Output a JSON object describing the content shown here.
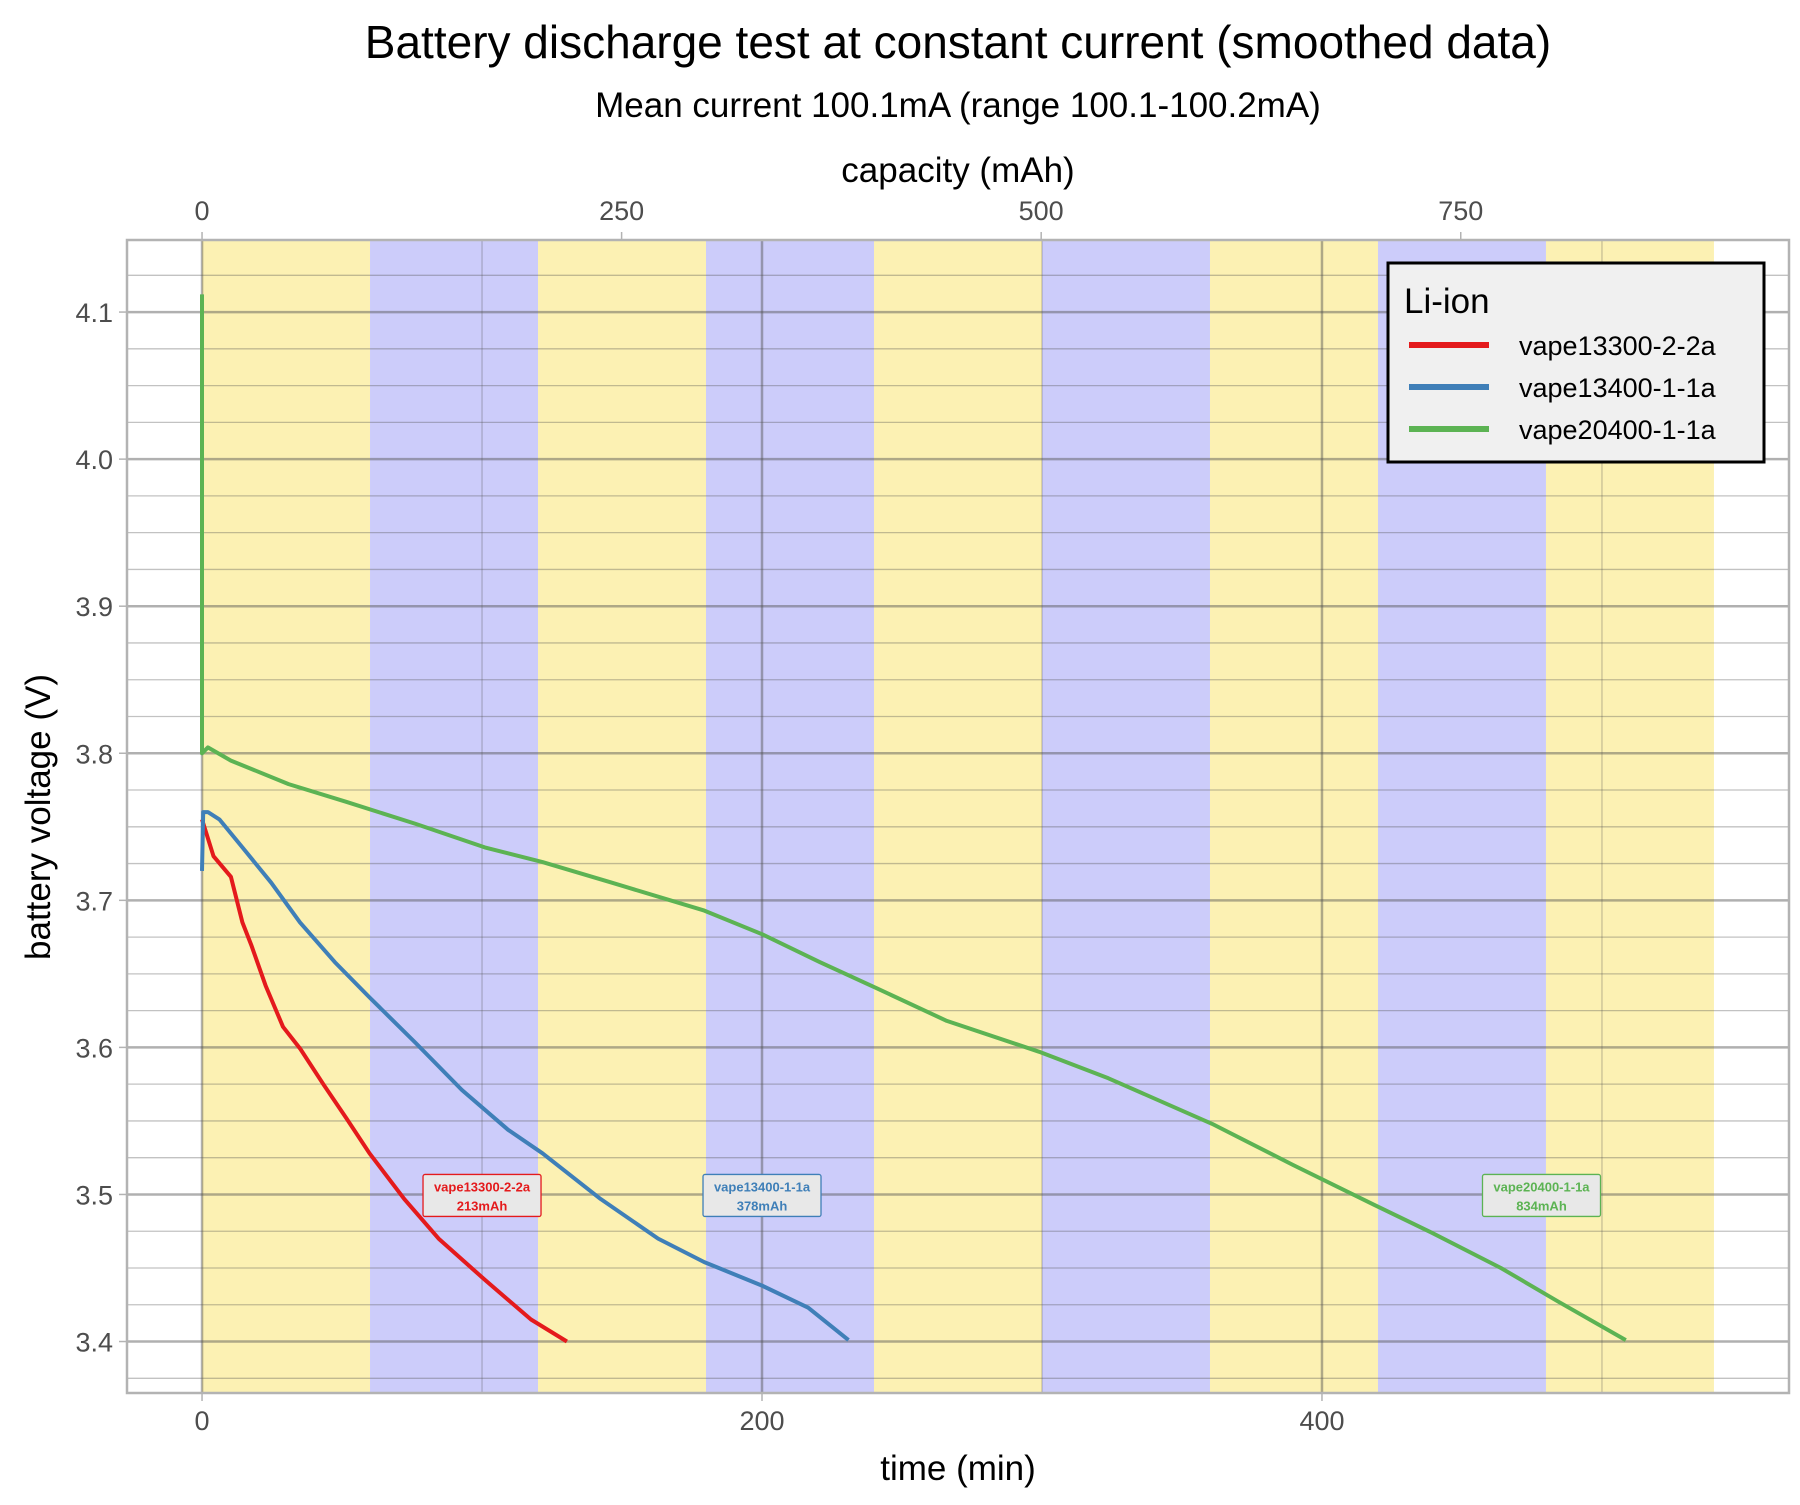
{
  "chart_data": {
    "type": "line",
    "title": "Battery discharge test at constant current (smoothed data)",
    "subtitle": "Mean current 100.1mA (range 100.1-100.2mA)",
    "xlabel": "time (min)",
    "ylabel": "battery voltage (V)",
    "x2label": "capacity (mAh)",
    "xlim": [
      -26.8,
      566.8
    ],
    "ylim": [
      3.365,
      4.149
    ],
    "x_ticks": [
      0,
      200,
      400
    ],
    "x2_ticks": [
      0,
      250,
      500,
      750
    ],
    "x2_per_x": 1.6683,
    "y_ticks": [
      "3.4",
      "3.5",
      "3.6",
      "3.7",
      "3.8",
      "3.9",
      "4.0",
      "4.1"
    ],
    "grid": true,
    "background_bands": {
      "width_min": 60,
      "end_min": 540,
      "colors": [
        "#fcf1b3",
        "#ccccfa"
      ]
    },
    "legend": {
      "title": "Li-ion",
      "position": "top-right"
    },
    "series": [
      {
        "name": "vape13300-2-2a",
        "color": "#e41a1c",
        "x": [
          0,
          4.1,
          10.3,
          14.4,
          17.7,
          22.7,
          28.9,
          35.1,
          43.3,
          51.5,
          59.8,
          72.2,
          84.5,
          101,
          117.5,
          130.3
        ],
        "y": [
          3.755,
          3.73,
          3.716,
          3.685,
          3.669,
          3.642,
          3.614,
          3.599,
          3.575,
          3.552,
          3.528,
          3.497,
          3.47,
          3.442,
          3.415,
          3.4
        ],
        "label": {
          "line1": "vape13300-2-2a",
          "line2": "213mAh",
          "x": 100,
          "y": 3.5
        }
      },
      {
        "name": "vape13400-1-1a",
        "color": "#3f7fb8",
        "x": [
          0,
          0.4,
          2.1,
          6.2,
          14.4,
          24.7,
          35,
          47.4,
          59.8,
          76.3,
          92.8,
          109.3,
          121.6,
          142.3,
          162.9,
          179.4,
          200,
          216.5,
          230.9
        ],
        "y": [
          3.72,
          3.76,
          3.76,
          3.755,
          3.736,
          3.712,
          3.685,
          3.658,
          3.634,
          3.603,
          3.571,
          3.544,
          3.528,
          3.497,
          3.47,
          3.454,
          3.438,
          3.423,
          3.401
        ],
        "label": {
          "line1": "vape13400-1-1a",
          "line2": "378mAh",
          "x": 200,
          "y": 3.5
        }
      },
      {
        "name": "vape20400-1-1a",
        "color": "#5cb353",
        "x": [
          0,
          0,
          2.1,
          10.3,
          30.9,
          51.5,
          76.3,
          101,
          121.6,
          146.4,
          179.4,
          200,
          220.6,
          241.2,
          266,
          299,
          323.7,
          360.8,
          389.7,
          418.6,
          439.2,
          463.9,
          484.5,
          508.5
        ],
        "y": [
          4.112,
          3.8,
          3.804,
          3.795,
          3.779,
          3.767,
          3.752,
          3.736,
          3.726,
          3.712,
          3.693,
          3.677,
          3.658,
          3.64,
          3.618,
          3.597,
          3.579,
          3.548,
          3.52,
          3.493,
          3.474,
          3.45,
          3.427,
          3.401
        ],
        "label": {
          "line1": "vape20400-1-1a",
          "line2": "834mAh",
          "x": 478.4,
          "y": 3.5
        }
      }
    ]
  }
}
